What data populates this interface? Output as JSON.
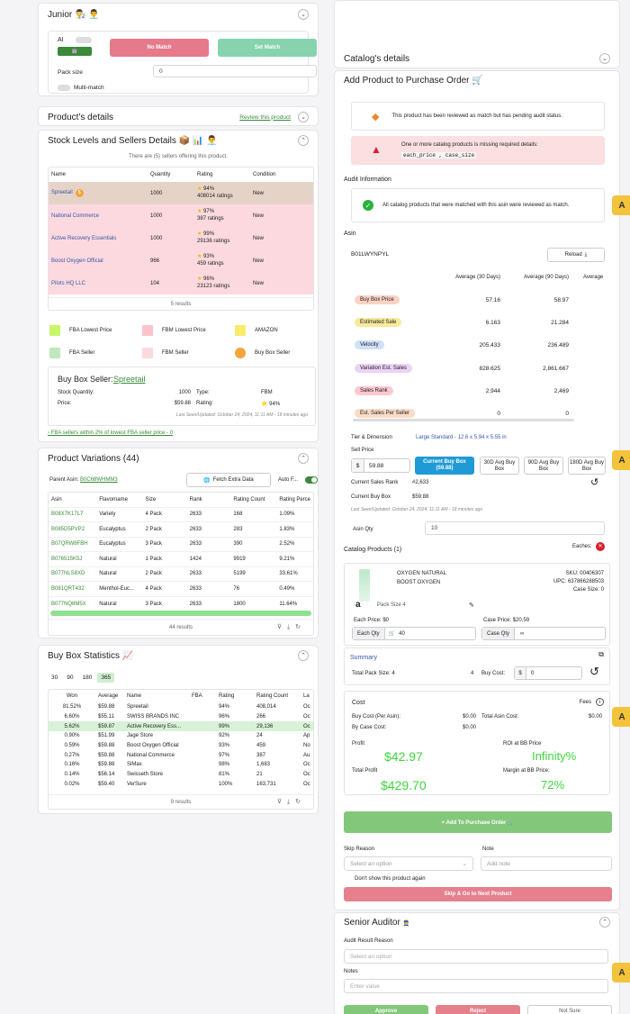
{
  "junior": {
    "title": "Junior 👨‍🔬 👨‍💼",
    "ai_label": "AI",
    "no_match": "No Match",
    "set_match": "Set Match",
    "pack_size_label": "Pack size",
    "pack_size_value": "0",
    "multi_match": "Multi-match"
  },
  "product_details": {
    "title": "Product's details",
    "review_link": "Review this product"
  },
  "stock": {
    "title": "Stock Levels and Sellers Details 📦 📊 👨‍💼",
    "summary": "There are (5) sellers offering this product.",
    "headers": [
      "Name",
      "Quantity",
      "Rating",
      "Condition"
    ],
    "rows": [
      {
        "name": "Spreetail",
        "qty": "1000",
        "pct": "94%",
        "ratings": "408014 ratings",
        "cond": "New",
        "color": "#e6d3c8"
      },
      {
        "name": "National Commerce",
        "qty": "1000",
        "pct": "97%",
        "ratings": "387 ratings",
        "cond": "New",
        "color": "#fbd9df"
      },
      {
        "name": "Active Recovery Essentials",
        "qty": "1000",
        "pct": "99%",
        "ratings": "29136 ratings",
        "cond": "New",
        "color": "#fbd9df"
      },
      {
        "name": "Boost Oxygen Official",
        "qty": "966",
        "pct": "93%",
        "ratings": "459 ratings",
        "cond": "New",
        "color": "#fbd9df"
      },
      {
        "name": "Pilots HQ LLC",
        "qty": "104",
        "pct": "96%",
        "ratings": "23123 ratings",
        "cond": "New",
        "color": "#fbd9df"
      }
    ],
    "results": "5 results",
    "legend": [
      {
        "label": "FBA Lowest Price",
        "color": "#c9f56b"
      },
      {
        "label": "FBM Lowest Price",
        "color": "#fbc3cc"
      },
      {
        "label": "AMAZON",
        "color": "#f7ec6b"
      },
      {
        "label": "FBA Seller",
        "color": "#bfe8bf"
      },
      {
        "label": "FBM Seller",
        "color": "#fbdadf"
      },
      {
        "label": "Buy Box Seller",
        "color": "#f3a43a"
      }
    ],
    "buybox": {
      "title": "Buy Box Seller:",
      "seller": "Spreetail",
      "stock_label": "Stock Quantity:",
      "stock": "1000",
      "type_label": "Type:",
      "type": "FBM",
      "price_label": "Price:",
      "price": "$59.88",
      "rating_label": "Rating:",
      "rating": "94%",
      "updated": "Last Seen/Updated: October 24, 2024, 11:11 AM - 18 minutes ago"
    },
    "fba_link": "FBA sellers within 2% of lowest FBA seller price - 0"
  },
  "variations": {
    "title": "Product Variations (44)",
    "parent_label": "Parent Asin:",
    "parent": "B0C68WHMM3",
    "fetch": "Fetch Extra Data",
    "auto": "Auto F...",
    "headers": [
      "Asin",
      "Flavorname",
      "Size",
      "Rank",
      "Rating Count",
      "Rating Perce"
    ],
    "rows": [
      [
        "B08X7K17L7",
        "Variety",
        "4 Pack",
        "2633",
        "168",
        "1.09%"
      ],
      [
        "B085D5PVP2",
        "Eucalyptus",
        "2 Pack",
        "2633",
        "283",
        "1.83%"
      ],
      [
        "B07QRW8FBH",
        "Eucalyptus",
        "3 Pack",
        "2633",
        "390",
        "2.52%"
      ],
      [
        "B076515K5J",
        "Natural",
        "1 Pack",
        "1424",
        "9919",
        "9.21%"
      ],
      [
        "B077NLS8XD",
        "Natural",
        "2 Pack",
        "2633",
        "5199",
        "33.61%"
      ],
      [
        "B081QRT432",
        "Menthol-Euc...",
        "4 Pack",
        "2633",
        "76",
        "0.49%"
      ],
      [
        "B077NQ8M5X",
        "Natural",
        "3 Pack",
        "2633",
        "1800",
        "11.64%"
      ]
    ],
    "results": "44 results"
  },
  "buybox_stats": {
    "title": "Buy Box Statistics 📈",
    "tabs": [
      "30",
      "90",
      "180",
      "365"
    ],
    "headers": [
      "Won",
      "Average",
      "Name",
      "FBA",
      "Rating",
      "Rating Count",
      "La"
    ],
    "rows": [
      [
        "81.52%",
        "$59.88",
        "Spreetail",
        "",
        "94%",
        "408,014",
        "Oc"
      ],
      [
        "6.60%",
        "$55.11",
        "SWISS BRANDS INC",
        "",
        "96%",
        "266",
        "Oc"
      ],
      [
        "5.62%",
        "$59.87",
        "Active Recovery Ess...",
        "",
        "99%",
        "29,136",
        "Oc"
      ],
      [
        "0.90%",
        "$51.99",
        "Jage Store",
        "",
        "92%",
        "24",
        "Ap"
      ],
      [
        "0.59%",
        "$59.88",
        "Boost Oxygen Official",
        "",
        "93%",
        "459",
        "No"
      ],
      [
        "0.27%",
        "$59.88",
        "National Commerce",
        "",
        "97%",
        "387",
        "Au"
      ],
      [
        "0.16%",
        "$59.88",
        "SiMax",
        "",
        "98%",
        "1,683",
        "Oc"
      ],
      [
        "0.14%",
        "$56.14",
        "Swisseth Store",
        "",
        "81%",
        "21",
        "Oc"
      ],
      [
        "0.02%",
        "$59.40",
        "VerSure",
        "",
        "100%",
        "163,731",
        "Oc"
      ]
    ],
    "results": "9 results"
  },
  "catalog_details": {
    "title": "Catalog's details"
  },
  "add_product": {
    "title": "Add Product to Purchase Order 🛒",
    "alert1": "This product has been reviewed as match but has pending audit status.",
    "alert2": "One or more catalog products is missing required details:",
    "alert2_fields": "each_price , case_size",
    "audit_info": "Audit Information",
    "audit_msg": "All catalog products that were matched with this asin were reviewed as match.",
    "asin_label": "Asin",
    "asin": "B01LWYNPYL",
    "reload": "Reload",
    "avg_headers": [
      "Average (30 Days)",
      "Average (90 Days)",
      "Average"
    ],
    "metrics": [
      {
        "label": "Buy Box Price",
        "v30": "57.16",
        "v90": "58.97",
        "color": "#fbd3c4"
      },
      {
        "label": "Estimated Sale",
        "v30": "6.163",
        "v90": "21.284",
        "color": "#f7ea9a"
      },
      {
        "label": "Velocity",
        "v30": "205.433",
        "v90": "236.489",
        "color": "#cfe0fb"
      },
      {
        "label": "Variation Est. Sales",
        "v30": "828.625",
        "v90": "2,861.667",
        "color": "#ecd3f6"
      },
      {
        "label": "Sales Rank",
        "v30": "2,944",
        "v90": "2,469",
        "color": "#fbc8cf"
      },
      {
        "label": "Est. Sales Per Seller",
        "v30": "0",
        "v90": "0",
        "color": "#fbdcc6"
      }
    ],
    "tier_label": "Tier & Dimension",
    "tier": "Large Standard - 12.6 x 5.94 x 5.55 in",
    "sell_price": "Sell Price",
    "sell_value": "59.88",
    "cur_bb": "Current Buy Box",
    "cur_bb_val": "(59.88)",
    "avg30": "30D Avg Buy Box",
    "avg90": "90D Avg Buy Box",
    "avg180": "180D Avg Buy Box",
    "cur_rank_label": "Current Sales Rank",
    "cur_rank": "#2,633",
    "cur_bb_label": "Current Buy Box",
    "cur_bb_price": "$59.88",
    "updated": "Last Seen/Updated: October 24, 2024, 11:11 AM - 18 minutes ago",
    "asin_qty_label": "Asin Qty",
    "asin_qty": "10",
    "catalog_products": "Catalog Products (1)",
    "eaches": "Eaches:",
    "product": {
      "name": "OXYGEN NATURAL",
      "brand": "BOOST OXYGEN",
      "sku": "SKU: 00406307",
      "upc": "UPC: 637866288503",
      "case_size": "Case Size: 0",
      "pack": "Pack Size 4",
      "each_price": "Each Price: $0",
      "case_price": "Case Price: $20.59",
      "each_qty_label": "Each Qty",
      "each_qty": "40",
      "case_qty_label": "Case Qty",
      "case_qty": "∞"
    },
    "summary": "Summary",
    "total_pack_label": "Total Pack Size: 4",
    "total_pack_val": "4",
    "buy_cost_label": "Buy Cost:",
    "buy_cost": "0",
    "cost": "Cost",
    "fees": "Fees",
    "buy_cost_asin": "Buy Cost (Per Asin):",
    "buy_cost_asin_val": "$0.00",
    "total_asin_cost": "Total Asin Cost:",
    "total_asin_cost_val": "$0.00",
    "by_case": "By Case Cost:",
    "by_case_val": "$0.00",
    "profit_label": "Profit",
    "profit": "$42.97",
    "roi_label": "ROI at BB Price",
    "roi": "Infinity%",
    "total_profit_label": "Total Profit",
    "total_profit": "$429.70",
    "margin_label": "Margin at BB Price:",
    "margin": "72%",
    "add_btn": "+ Add To Purchase Order 🛒",
    "skip_reason": "Skip Reason",
    "note": "Note",
    "select_opt": "Select an option",
    "add_note": "Add note",
    "dont_show": "Don't show this product again",
    "skip_btn": "Skip & Go to Next Product"
  },
  "senior": {
    "title": "Senior Auditor",
    "audit_reason": "Audit Result Reason",
    "select_opt": "Select an option",
    "notes": "Notes",
    "enter_value": "Enter value",
    "approve": "Approve",
    "reject": "Reject",
    "not_sure": "Not Sure"
  },
  "badge": "A"
}
